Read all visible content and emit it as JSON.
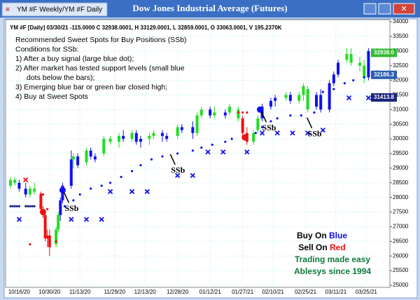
{
  "window": {
    "tab": "YM #F Weekly/YM #F Daily"
  },
  "chart_data": {
    "type": "candlestick",
    "title": "Dow Jones Industrial Average (Futures)",
    "info": "YM #F [Daily] 03/30/21 -115.0000 C 32938.0001, H 33129.0001, L 32859.0001, O 33063.0001, V 195.2370K",
    "notes": [
      "Recommended Sweet Spots for Buy Positions (SSb)",
      "Conditions for SSb:",
      "1) After a buy signal (large blue dot);",
      "2) After market has tested support levels (small blue",
      "dots below the bars);",
      "3) Emerging blue bar or green bar closed high;",
      "4) Buy at Sweet Spots"
    ],
    "slogan": {
      "buy": [
        "Buy On ",
        "Blue"
      ],
      "sell": [
        "Sell On ",
        "Red"
      ],
      "line3": "Trading made easy",
      "line4": "Ablesys since 1994"
    },
    "xlim": [
      "10/12/20",
      "04/01/21"
    ],
    "xticks": [
      "10/16/20",
      "10/30/20",
      "11/13/20",
      "11/29/20",
      "12/13/20",
      "12/28/20",
      "01/12/21",
      "01/27/21",
      "02/10/21",
      "02/25/21",
      "03/11/21",
      "03/25/21"
    ],
    "ylim": [
      25000,
      34000
    ],
    "yticks": [
      25000,
      25500,
      26000,
      26500,
      27000,
      27500,
      28000,
      28500,
      29000,
      29500,
      30000,
      30500,
      31000,
      31500,
      32000,
      32500,
      33000,
      33500,
      34000
    ],
    "grid": true,
    "candles": [
      {
        "date": "10/12/20",
        "open": 28400,
        "high": 28700,
        "low": 28300,
        "close": 28600,
        "color": "#22dd22"
      },
      {
        "date": "10/14/20",
        "open": 28600,
        "high": 28700,
        "low": 28400,
        "close": 28500,
        "color": "#22dd22"
      },
      {
        "date": "10/16/20",
        "open": 28500,
        "high": 28600,
        "low": 28200,
        "close": 28300,
        "color": "#1010ee"
      },
      {
        "date": "10/19/20",
        "open": 28300,
        "high": 28500,
        "low": 28000,
        "close": 28100,
        "color": "#1010ee"
      },
      {
        "date": "10/21/20",
        "open": 28100,
        "high": 28400,
        "low": 28000,
        "close": 28300,
        "color": "#22dd22"
      },
      {
        "date": "10/23/20",
        "open": 28300,
        "high": 28500,
        "low": 28100,
        "close": 28200,
        "color": "#22dd22"
      },
      {
        "date": "10/26/20",
        "open": 28100,
        "high": 28200,
        "low": 27500,
        "close": 27600,
        "color": "#ee1111"
      },
      {
        "date": "10/27/20",
        "open": 27600,
        "high": 27700,
        "low": 27300,
        "close": 27400,
        "color": "#ee1111"
      },
      {
        "date": "10/28/20",
        "open": 27400,
        "high": 27500,
        "low": 26500,
        "close": 26600,
        "color": "#ee1111"
      },
      {
        "date": "10/29/20",
        "open": 26600,
        "high": 26900,
        "low": 26300,
        "close": 26700,
        "color": "#ee1111"
      },
      {
        "date": "10/30/20",
        "open": 26700,
        "high": 26900,
        "low": 26000,
        "close": 26300,
        "color": "#ee1111"
      },
      {
        "date": "11/02/20",
        "open": 26400,
        "high": 27000,
        "low": 26300,
        "close": 26900,
        "color": "#22dd22"
      },
      {
        "date": "11/03/20",
        "open": 26900,
        "high": 27500,
        "low": 26800,
        "close": 27400,
        "color": "#22dd22"
      },
      {
        "date": "11/04/20",
        "open": 27400,
        "high": 28000,
        "low": 27200,
        "close": 27900,
        "color": "#1010ee"
      },
      {
        "date": "11/05/20",
        "open": 27900,
        "high": 28500,
        "low": 27800,
        "close": 28400,
        "color": "#1010ee"
      },
      {
        "date": "11/09/20",
        "open": 28400,
        "high": 29600,
        "low": 28300,
        "close": 29300,
        "color": "#1010ee"
      },
      {
        "date": "11/10/20",
        "open": 29300,
        "high": 29500,
        "low": 29000,
        "close": 29400,
        "color": "#22dd22"
      },
      {
        "date": "11/12/20",
        "open": 29400,
        "high": 29500,
        "low": 29000,
        "close": 29100,
        "color": "#1010ee"
      },
      {
        "date": "11/16/20",
        "open": 29200,
        "high": 29700,
        "low": 29100,
        "close": 29600,
        "color": "#22dd22"
      },
      {
        "date": "11/18/20",
        "open": 29600,
        "high": 29700,
        "low": 29300,
        "close": 29400,
        "color": "#1010ee"
      },
      {
        "date": "11/20/20",
        "open": 29400,
        "high": 29500,
        "low": 29200,
        "close": 29300,
        "color": "#1010ee"
      },
      {
        "date": "11/24/20",
        "open": 29500,
        "high": 30100,
        "low": 29400,
        "close": 30000,
        "color": "#22dd22"
      },
      {
        "date": "11/27/20",
        "open": 30000,
        "high": 30100,
        "low": 29800,
        "close": 29900,
        "color": "#22dd22"
      },
      {
        "date": "12/01/20",
        "open": 29900,
        "high": 30200,
        "low": 29700,
        "close": 30100,
        "color": "#22dd22"
      },
      {
        "date": "12/03/20",
        "open": 30100,
        "high": 30300,
        "low": 29900,
        "close": 30000,
        "color": "#1010ee"
      },
      {
        "date": "12/07/20",
        "open": 30000,
        "high": 30300,
        "low": 29900,
        "close": 30200,
        "color": "#22dd22"
      },
      {
        "date": "12/09/20",
        "open": 30200,
        "high": 30300,
        "low": 29800,
        "close": 29900,
        "color": "#1010ee"
      },
      {
        "date": "12/11/20",
        "open": 29900,
        "high": 30100,
        "low": 29700,
        "close": 30000,
        "color": "#1010ee"
      },
      {
        "date": "12/15/20",
        "open": 30000,
        "high": 30200,
        "low": 29800,
        "close": 30100,
        "color": "#22dd22"
      },
      {
        "date": "12/17/20",
        "open": 30100,
        "high": 30300,
        "low": 30000,
        "close": 30200,
        "color": "#22dd22"
      },
      {
        "date": "12/21/20",
        "open": 30200,
        "high": 30300,
        "low": 29900,
        "close": 30100,
        "color": "#1010ee"
      },
      {
        "date": "12/23/20",
        "open": 30100,
        "high": 30200,
        "low": 29900,
        "close": 30000,
        "color": "#1010ee"
      },
      {
        "date": "12/28/20",
        "open": 30100,
        "high": 30500,
        "low": 30000,
        "close": 30400,
        "color": "#22dd22"
      },
      {
        "date": "12/30/20",
        "open": 30400,
        "high": 30500,
        "low": 30200,
        "close": 30300,
        "color": "#1010ee"
      },
      {
        "date": "01/04/21",
        "open": 30400,
        "high": 30600,
        "low": 30000,
        "close": 30200,
        "color": "#1010ee"
      },
      {
        "date": "01/06/21",
        "open": 30200,
        "high": 30900,
        "low": 30100,
        "close": 30800,
        "color": "#22dd22"
      },
      {
        "date": "01/08/21",
        "open": 30800,
        "high": 31100,
        "low": 30700,
        "close": 31000,
        "color": "#22dd22"
      },
      {
        "date": "01/12/21",
        "open": 31000,
        "high": 31100,
        "low": 30700,
        "close": 30800,
        "color": "#1010ee"
      },
      {
        "date": "01/14/21",
        "open": 30800,
        "high": 31100,
        "low": 30700,
        "close": 30900,
        "color": "#22dd22"
      },
      {
        "date": "01/19/21",
        "open": 30800,
        "high": 31000,
        "low": 30700,
        "close": 30900,
        "color": "#1010ee"
      },
      {
        "date": "01/21/21",
        "open": 30900,
        "high": 31200,
        "low": 30800,
        "close": 31100,
        "color": "#22dd22"
      },
      {
        "date": "01/25/21",
        "open": 31000,
        "high": 31100,
        "low": 30600,
        "close": 30700,
        "color": "#22dd22"
      },
      {
        "date": "01/27/21",
        "open": 30700,
        "high": 30800,
        "low": 30100,
        "close": 30200,
        "color": "#ee1111"
      },
      {
        "date": "01/29/21",
        "open": 30200,
        "high": 30400,
        "low": 29800,
        "close": 29900,
        "color": "#ee1111"
      },
      {
        "date": "02/01/21",
        "open": 29900,
        "high": 30300,
        "low": 29800,
        "close": 30200,
        "color": "#22dd22"
      },
      {
        "date": "02/03/21",
        "open": 30300,
        "high": 30800,
        "low": 30200,
        "close": 30700,
        "color": "#22dd22"
      },
      {
        "date": "02/05/21",
        "open": 30700,
        "high": 31200,
        "low": 30600,
        "close": 31100,
        "color": "#1010ee"
      },
      {
        "date": "02/09/21",
        "open": 31100,
        "high": 31400,
        "low": 31000,
        "close": 31300,
        "color": "#1010ee"
      },
      {
        "date": "02/11/21",
        "open": 31300,
        "high": 31500,
        "low": 31100,
        "close": 31400,
        "color": "#1010ee"
      },
      {
        "date": "02/16/21",
        "open": 31400,
        "high": 31600,
        "low": 31300,
        "close": 31500,
        "color": "#22dd22"
      },
      {
        "date": "02/18/21",
        "open": 31500,
        "high": 31600,
        "low": 31200,
        "close": 31300,
        "color": "#1010ee"
      },
      {
        "date": "02/22/21",
        "open": 31300,
        "high": 31600,
        "low": 31200,
        "close": 31500,
        "color": "#22dd22"
      },
      {
        "date": "02/24/21",
        "open": 31500,
        "high": 31900,
        "low": 31300,
        "close": 31800,
        "color": "#22dd22"
      },
      {
        "date": "02/26/21",
        "open": 31700,
        "high": 31800,
        "low": 30900,
        "close": 31000,
        "color": "#22dd22"
      },
      {
        "date": "03/02/21",
        "open": 31100,
        "high": 31600,
        "low": 31000,
        "close": 31500,
        "color": "#1010ee"
      },
      {
        "date": "03/04/21",
        "open": 31500,
        "high": 31700,
        "low": 30900,
        "close": 31000,
        "color": "#1010ee"
      },
      {
        "date": "03/08/21",
        "open": 31000,
        "high": 32000,
        "low": 30900,
        "close": 31900,
        "color": "#1010ee"
      },
      {
        "date": "03/10/21",
        "open": 31900,
        "high": 32300,
        "low": 31800,
        "close": 32200,
        "color": "#1010ee"
      },
      {
        "date": "03/12/21",
        "open": 32200,
        "high": 32700,
        "low": 32100,
        "close": 32600,
        "color": "#1010ee"
      },
      {
        "date": "03/16/21",
        "open": 32700,
        "high": 33100,
        "low": 32600,
        "close": 32900,
        "color": "#22dd22"
      },
      {
        "date": "03/18/21",
        "open": 32900,
        "high": 33100,
        "low": 32500,
        "close": 32600,
        "color": "#22dd22"
      },
      {
        "date": "03/22/21",
        "open": 32600,
        "high": 32800,
        "low": 32300,
        "close": 32500,
        "color": "#22dd22"
      },
      {
        "date": "03/24/21",
        "open": 32500,
        "high": 32700,
        "low": 31900,
        "close": 32100,
        "color": "#22dd22"
      },
      {
        "date": "03/26/21",
        "open": 32100,
        "high": 33100,
        "low": 32000,
        "close": 33000,
        "color": "#1010ee"
      },
      {
        "date": "03/30/21",
        "open": 33000,
        "high": 33100,
        "low": 32900,
        "close": 32938,
        "color": "#22dd22"
      }
    ],
    "dots": [
      {
        "color": "#1a237e",
        "size": 1.6,
        "x": [
          "10/12/20",
          "10/13/20",
          "10/14/20",
          "10/15/20",
          "10/16/20",
          "10/19/20",
          "10/20/20",
          "10/21/20",
          "10/22/20",
          "10/23/20"
        ],
        "values": [
          27700,
          27700,
          27700,
          27700,
          27700,
          27700,
          27700,
          27700,
          27700,
          27700
        ]
      },
      {
        "color": "#ee1111",
        "size": 1.6,
        "x": [
          "10/21/20",
          "10/26/20",
          "10/27/20",
          "10/29/20",
          "11/02/20",
          "01/25/21",
          "01/27/21",
          "01/29/21"
        ],
        "values": [
          26400,
          28100,
          28100,
          27600,
          26500,
          30900,
          30900,
          30900
        ]
      },
      {
        "color": "#1010ee",
        "size": 1.6,
        "x": [
          "11/04/20",
          "11/06/20",
          "11/10/20",
          "11/13/20",
          "11/18/20",
          "11/23/20",
          "11/27/20",
          "12/02/20",
          "12/07/20",
          "12/11/20",
          "12/16/20",
          "12/21/20",
          "12/28/20",
          "01/04/21",
          "01/08/21",
          "01/13/21",
          "01/19/21",
          "01/22/21",
          "02/02/21",
          "02/05/21",
          "02/09/21",
          "02/12/21",
          "02/18/21",
          "02/23/21",
          "03/01/21",
          "03/05/21",
          "03/10/21",
          "03/15/21",
          "03/19/21",
          "03/24/21",
          "03/30/21"
        ],
        "values": [
          27500,
          27700,
          27900,
          28100,
          28300,
          28400,
          28500,
          28700,
          28900,
          29100,
          29300,
          29400,
          29500,
          29600,
          29700,
          29800,
          29900,
          30000,
          30200,
          30400,
          30600,
          30700,
          30800,
          30800,
          30900,
          31600,
          31700,
          31900,
          32000,
          32100,
          32300
        ]
      },
      {
        "color": "#ee1111",
        "size": 4.5,
        "x": [
          "10/27/20",
          "01/28/21"
        ],
        "values": [
          27500,
          30050
        ]
      },
      {
        "color": "#1010ee",
        "size": 4.5,
        "x": [
          "11/05/20",
          "02/04/21"
        ],
        "values": [
          28250,
          31000
        ]
      }
    ],
    "crosses": [
      {
        "color": "#ee1111",
        "x": [
          "10/19/20"
        ],
        "values": [
          28600
        ]
      },
      {
        "color": "#1010ee",
        "x": [
          "10/16/20",
          "11/09/20",
          "11/16/20",
          "11/23/20",
          "11/27/20",
          "12/07/20",
          "12/14/20",
          "12/28/20",
          "01/04/21",
          "01/11/21",
          "01/18/21",
          "01/29/21",
          "02/05/21",
          "02/12/21",
          "02/19/21",
          "02/26/21",
          "03/05/21",
          "03/17/21",
          "03/26/21"
        ],
        "values": [
          27250,
          27250,
          27250,
          27250,
          28200,
          28200,
          28200,
          28750,
          28750,
          29550,
          29550,
          29550,
          30200,
          30200,
          30200,
          30200,
          30300,
          31400,
          31400
        ]
      }
    ],
    "annotations": [
      {
        "text": "SSb",
        "x": "11/05/20",
        "y": 28250
      },
      {
        "text": "SSb",
        "x": "12/24/20",
        "y": 29550
      },
      {
        "text": "SSb",
        "x": "02/04/21",
        "y": 31000
      },
      {
        "text": "SSb",
        "x": "02/25/21",
        "y": 30800
      }
    ],
    "price_tags": [
      {
        "value": 32938,
        "label": "32938.0",
        "color": "#33bb33"
      },
      {
        "value": 32186.3,
        "label": "32186.3",
        "color": "#2a5db0"
      },
      {
        "value": 31413.8,
        "label": "31413.8",
        "color": "#1a237e"
      }
    ]
  }
}
